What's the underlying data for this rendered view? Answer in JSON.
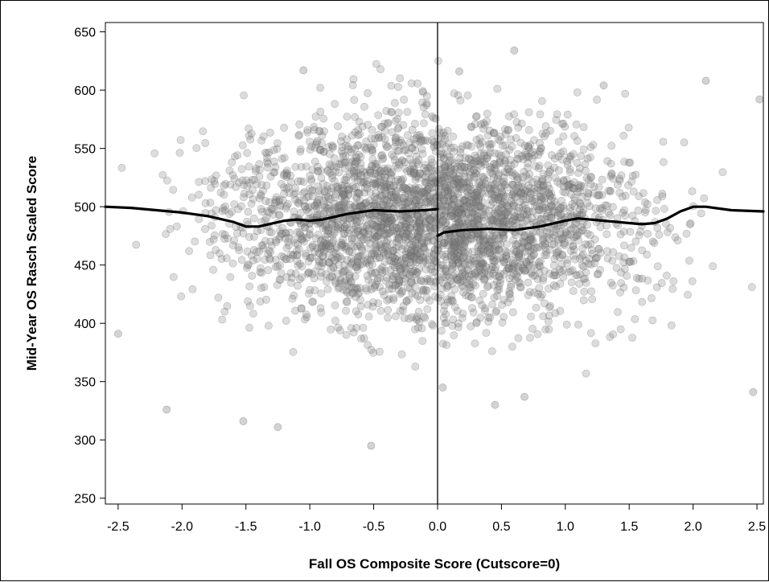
{
  "chart_data": {
    "type": "scatter",
    "title": "",
    "xlabel": "Fall OS Composite Score (Cutscore=0)",
    "ylabel": "Mid-Year OS Rasch Scaled Score",
    "xlim": [
      -2.6,
      2.55
    ],
    "ylim": [
      245,
      658
    ],
    "cutscore": 0,
    "x_ticks": [
      "-2.5",
      "-2.0",
      "-1.5",
      "-1.0",
      "-0.5",
      "0.0",
      "0.5",
      "1.0",
      "1.5",
      "2.0",
      "2.5"
    ],
    "x_tick_values": [
      -2.5,
      -2.0,
      -1.5,
      -1.0,
      -0.5,
      0.0,
      0.5,
      1.0,
      1.5,
      2.0,
      2.5
    ],
    "y_ticks": [
      "650",
      "600",
      "550",
      "500",
      "450",
      "400",
      "350",
      "300",
      "250"
    ],
    "y_tick_values": [
      650,
      600,
      550,
      500,
      450,
      400,
      350,
      300,
      250
    ],
    "grid": false,
    "point_color": "#808080",
    "line_color": "#000000",
    "series": [
      {
        "kind": "smooth",
        "side": "left",
        "x": [
          -2.6,
          -2.4,
          -2.2,
          -2.0,
          -1.8,
          -1.6,
          -1.5,
          -1.4,
          -1.2,
          -1.1,
          -1.0,
          -0.9,
          -0.7,
          -0.5,
          -0.3,
          -0.1,
          0.0
        ],
        "y": [
          500,
          499,
          497,
          495,
          492,
          487,
          483,
          483,
          488,
          489,
          488,
          489,
          494,
          497,
          496,
          497,
          498
        ]
      },
      {
        "kind": "smooth",
        "side": "right",
        "x": [
          0.0,
          0.05,
          0.2,
          0.4,
          0.6,
          0.8,
          1.0,
          1.1,
          1.3,
          1.5,
          1.6,
          1.7,
          1.8,
          1.9,
          2.0,
          2.1,
          2.3,
          2.55
        ],
        "y": [
          475,
          478,
          480,
          481,
          480,
          483,
          488,
          490,
          488,
          486,
          485,
          486,
          490,
          496,
          500,
          500,
          497,
          496
        ]
      }
    ],
    "highlighted_points": [
      {
        "x": -2.12,
        "y": 326
      },
      {
        "x": -1.52,
        "y": 316
      },
      {
        "x": -1.25,
        "y": 311
      },
      {
        "x": -0.52,
        "y": 295
      },
      {
        "x": 0.6,
        "y": 634
      },
      {
        "x": -1.05,
        "y": 617
      },
      {
        "x": 0.17,
        "y": 616
      },
      {
        "x": 2.1,
        "y": 608
      },
      {
        "x": 2.52,
        "y": 592
      },
      {
        "x": 2.47,
        "y": 341
      },
      {
        "x": -2.5,
        "y": 391
      },
      {
        "x": 0.04,
        "y": 345
      },
      {
        "x": 0.45,
        "y": 330
      },
      {
        "x": 0.68,
        "y": 337
      },
      {
        "x": 1.3,
        "y": 604
      }
    ],
    "scatter_points": {
      "n": 3400,
      "center_x": 0.0,
      "spread_x": 1.0,
      "center_y": 490,
      "spread_y": 42,
      "note_density": "densest between -1.5 and 1.5"
    }
  }
}
